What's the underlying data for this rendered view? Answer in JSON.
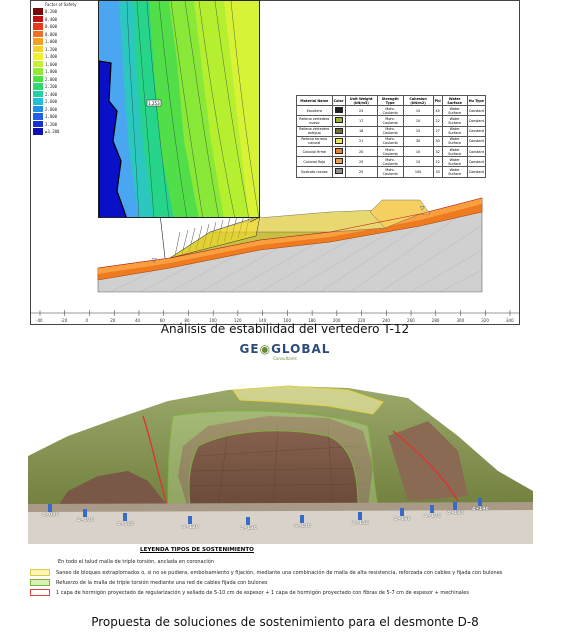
{
  "colorbar": {
    "title": "Factor of Safety",
    "entries": [
      {
        "value": "0.200",
        "color": "#7a0a0a"
      },
      {
        "value": "0.400",
        "color": "#c01010"
      },
      {
        "value": "0.600",
        "color": "#e83a1a"
      },
      {
        "value": "0.800",
        "color": "#f07020"
      },
      {
        "value": "1.000",
        "color": "#f4a020"
      },
      {
        "value": "1.200",
        "color": "#f6d030"
      },
      {
        "value": "1.400",
        "color": "#eef030"
      },
      {
        "value": "1.600",
        "color": "#c8f030"
      },
      {
        "value": "1.800",
        "color": "#90ec30"
      },
      {
        "value": "2.000",
        "color": "#50e040"
      },
      {
        "value": "2.200",
        "color": "#30d870"
      },
      {
        "value": "2.400",
        "color": "#20d0a8"
      },
      {
        "value": "2.600",
        "color": "#20c0d8"
      },
      {
        "value": "2.800",
        "color": "#2090e8"
      },
      {
        "value": "3.000",
        "color": "#2060e8"
      },
      {
        "value": "3.200",
        "color": "#1830d8"
      },
      {
        "value": "≥3.200",
        "color": "#1010b0"
      }
    ]
  },
  "fs_label": "1.253",
  "material_table": {
    "headers": [
      "Material Name",
      "Color",
      "Unit Weight (kN/m3)",
      "Strength Type",
      "Cohesion (kN/m2)",
      "Phi",
      "Water Surface",
      "Hu Type"
    ],
    "rows": [
      {
        "name": "Escollera",
        "color": "#202020",
        "uw": "23",
        "st": "Mohr-Coulomb",
        "c": "10",
        "phi": "45",
        "ws": "Water Surface",
        "hu": "Constant"
      },
      {
        "name": "Relleno vertedero nuevo",
        "color": "#a8b030",
        "uw": "17",
        "st": "Mohr-Coulomb",
        "c": "10",
        "phi": "22",
        "ws": "Water Surface",
        "hu": "Constant"
      },
      {
        "name": "Relleno vertedero antiguo",
        "color": "#707030",
        "uw": "18",
        "st": "Mohr-Coulomb",
        "c": "15",
        "phi": "27",
        "ws": "Water Surface",
        "hu": "Constant"
      },
      {
        "name": "Relleno terreno natural",
        "color": "#e8e850",
        "uw": "21",
        "st": "Mohr-Coulomb",
        "c": "30",
        "phi": "30",
        "ws": "Water Surface",
        "hu": "Constant"
      },
      {
        "name": "Coluvial firme",
        "color": "#f08030",
        "uw": "20",
        "st": "Mohr-Coulomb",
        "c": "10",
        "phi": "32",
        "ws": "Water Surface",
        "hu": "Constant"
      },
      {
        "name": "Coluvial flojo",
        "color": "#f0a050",
        "uw": "20",
        "st": "Mohr-Coulomb",
        "c": "10",
        "phi": "22",
        "ws": "Water Surface",
        "hu": "Constant"
      },
      {
        "name": "Sustrato rocoso",
        "color": "#909090",
        "uw": "25",
        "st": "Mohr-Coulomb",
        "c": "100",
        "phi": "33",
        "ws": "Water Surface",
        "hu": "Constant"
      }
    ]
  },
  "x_ticks": [
    "-40",
    "-20",
    "0",
    "20",
    "40",
    "60",
    "80",
    "100",
    "120",
    "140",
    "160",
    "180",
    "200",
    "220",
    "240",
    "260",
    "280",
    "300",
    "320",
    "340"
  ],
  "caption_top": "Análisis de estabilidad del vertedero T-12",
  "logo": {
    "part1": "GE",
    "part2": "GLOBAL",
    "sub": "Consultores"
  },
  "chainages": [
    "4+080",
    "4+100",
    "4+110",
    "4+120",
    "4+130",
    "4+140",
    "4+150",
    "4+160",
    "4+170",
    "4+180",
    "4+190"
  ],
  "legend": {
    "title": "LEYENDA TIPOS DE SOSTENIMIENTO",
    "intro": "En todo el talud malla de triple torsión, anclada en coronación",
    "items": [
      {
        "text": "Saneo de bloques extraplomados o, si no se pudiera, embolsamiento y fijación, mediante una combinación de malla de alta resistencia, reforzada con cables y fijada con bulones",
        "fill": "#fff7b0",
        "border": "#d8c850"
      },
      {
        "text": "Refuerzo de la malla de triple torsión mediante una red de cables fijada con bulones",
        "fill": "#d8f0b0",
        "border": "#80b040"
      },
      {
        "text": "1 capa de hormigón proyectado de regularización y sellado de 5-10 cm de espesor + 1 capa de hormigón proyectado con fibras de 5-7 cm de espesor + mechinales",
        "fill": "#ffffff",
        "border": "#e04040"
      }
    ]
  },
  "caption_bottom": "Propuesta de soluciones de sostenimiento para el desmonte D-8"
}
